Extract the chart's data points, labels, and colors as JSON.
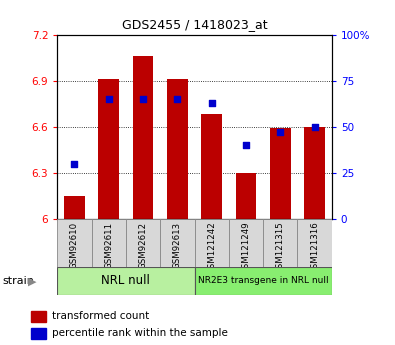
{
  "title": "GDS2455 / 1418023_at",
  "samples": [
    "GSM92610",
    "GSM92611",
    "GSM92612",
    "GSM92613",
    "GSM121242",
    "GSM121249",
    "GSM121315",
    "GSM121316"
  ],
  "groups": [
    {
      "label": "NRL null",
      "color": "#b8f0a0",
      "indices": [
        0,
        1,
        2,
        3
      ]
    },
    {
      "label": "NR2E3 transgene in NRL null",
      "color": "#88ee70",
      "indices": [
        4,
        5,
        6,
        7
      ]
    }
  ],
  "transformed_counts": [
    6.15,
    6.91,
    7.06,
    6.91,
    6.68,
    6.3,
    6.59,
    6.6
  ],
  "percentile_ranks": [
    30,
    65,
    65,
    65,
    63,
    40,
    47,
    50
  ],
  "ylim_left": [
    6.0,
    7.2
  ],
  "ylim_right": [
    0,
    100
  ],
  "yticks_left": [
    6.0,
    6.3,
    6.6,
    6.9,
    7.2
  ],
  "yticks_right": [
    0,
    25,
    50,
    75,
    100
  ],
  "bar_color": "#bb0000",
  "dot_color": "#0000cc",
  "bar_bottom": 6.0,
  "legend_items": [
    {
      "label": "transformed count",
      "color": "#bb0000"
    },
    {
      "label": "percentile rank within the sample",
      "color": "#0000cc"
    }
  ]
}
